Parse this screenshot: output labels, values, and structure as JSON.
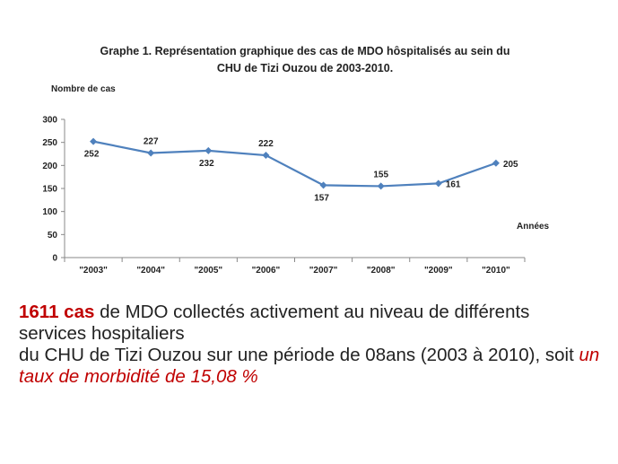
{
  "chart_data": {
    "type": "line",
    "title": "Graphe  1. Représentation graphique  des cas de MDO hôspitalisés  au sein du CHU de Tizi Ouzou de 2003-2010.",
    "title_lines": [
      "Graphe  1. Représentation graphique  des cas de MDO hôspitalisés  au sein du",
      "CHU de Tizi Ouzou de 2003-2010."
    ],
    "ylabel": "Nombre de cas",
    "xlabel": "Années",
    "categories": [
      "\"2003\"",
      "\"2004\"",
      "\"2005\"",
      "\"2006\"",
      "\"2007\"",
      "\"2008\"",
      "\"2009\"",
      "\"2010\""
    ],
    "values": [
      252,
      227,
      232,
      222,
      157,
      155,
      161,
      205
    ],
    "value_labels": [
      "252",
      "227",
      "232",
      "222",
      "157",
      "155",
      "161",
      "205"
    ],
    "label_positions": [
      "below",
      "above",
      "below",
      "above",
      "below",
      "above",
      "right",
      "right"
    ],
    "ylim": [
      0,
      300
    ],
    "yticks": [
      "0",
      "50",
      "100",
      "150",
      "200",
      "250",
      "300"
    ],
    "grid": false,
    "line_color": "#4f81bd"
  },
  "caption": {
    "count": "1611 cas",
    "line1_rest": " de MDO collectés activement au niveau de différents services hospitaliers",
    "line2": "du CHU de Tizi Ouzou sur une période de 08ans (2003 à 2010),  soit ",
    "rate": "un taux de morbidité de 15,08 %"
  }
}
